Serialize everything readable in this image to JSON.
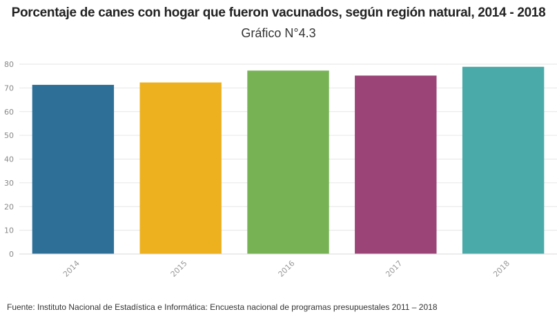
{
  "chart_data": {
    "type": "bar",
    "title": "Porcentaje de canes con hogar que fueron vacunados, según región natural, 2014 - 2018",
    "subtitle": "Gráfico N°4.3",
    "categories": [
      "2014",
      "2015",
      "2016",
      "2017",
      "2018"
    ],
    "values": [
      71.3,
      72.3,
      77.3,
      75.2,
      78.9
    ],
    "colors": [
      "#2E6F98",
      "#EDB11F",
      "#77B255",
      "#9A4477",
      "#49AAA9"
    ],
    "ylim": [
      0,
      80
    ],
    "yticks": [
      "0",
      "10",
      "20",
      "30",
      "40",
      "50",
      "60",
      "70",
      "80"
    ],
    "grid": true,
    "legend": "none",
    "xlabel": "",
    "ylabel": ""
  },
  "source_note": "Fuente: Instituto Nacional de Estadística e Informática: Encuesta nacional de programas presupuestales 2011 – 2018"
}
